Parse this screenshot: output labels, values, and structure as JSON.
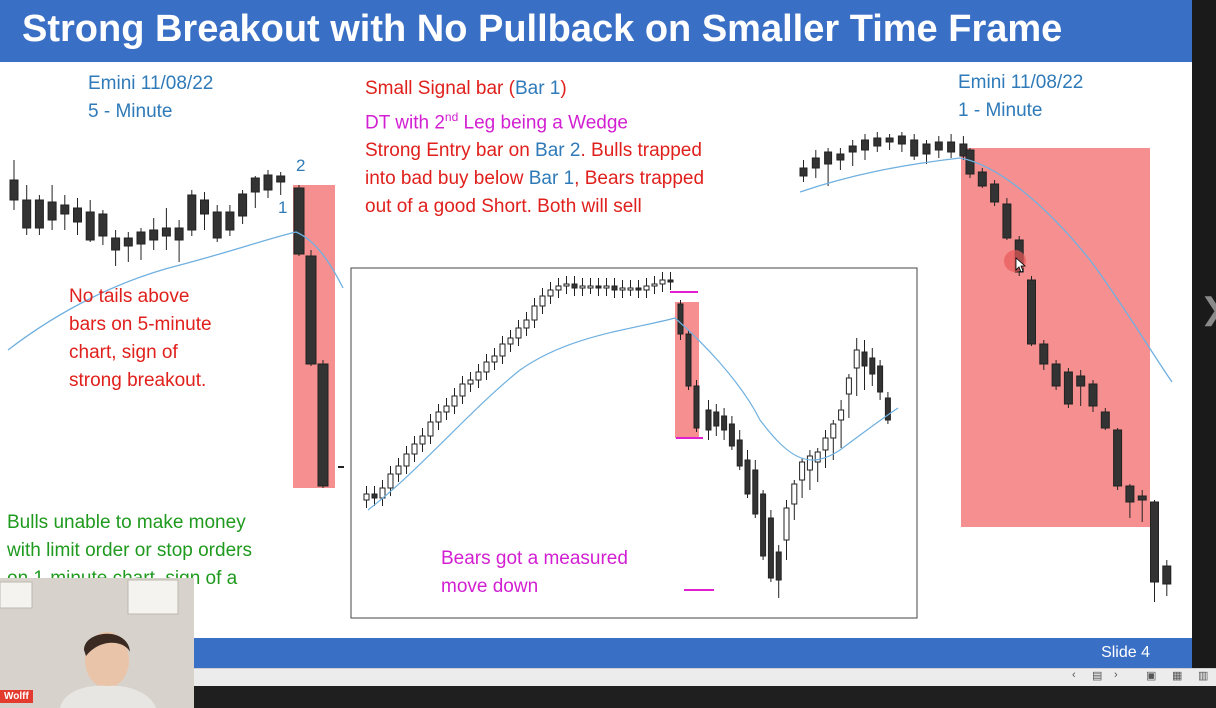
{
  "slide": {
    "title": "Strong Breakout with No Pullback on Smaller Time Frame",
    "left_chart_label": [
      "Emini 11/08/22",
      "5 - Minute"
    ],
    "right_chart_label": [
      "Emini 11/08/22",
      "1 - Minute"
    ],
    "bar_numbers": [
      "2",
      "1"
    ],
    "signal_text": {
      "line1_a": "Small Signal bar (",
      "line1_b": "Bar 1",
      "line1_c": ")",
      "line2_a": "DT with 2",
      "line2_sup": "nd",
      "line2_b": " Leg being a Wedge",
      "line3_a": "Strong Entry bar on ",
      "line3_b": "Bar 2",
      "line3_c": ". Bulls trapped",
      "line4_a": "into bad buy below ",
      "line4_b": "Bar 1",
      "line4_c": ", Bears trapped",
      "line5": "out of a good Short. Both will sell"
    },
    "no_tails_text": [
      "No tails above",
      "bars on 5-minute",
      "chart, sign of",
      "strong breakout."
    ],
    "bulls_text": [
      "Bulls unable to make money",
      "with limit order or stop orders",
      "on 1-minute chart, sign of a"
    ],
    "measured_move_text": [
      "Bears got a measured",
      "move down"
    ],
    "slide_number": "Slide  4"
  },
  "colors": {
    "title_bg": "#3a6fc6",
    "blue_text": "#2f7ab8",
    "red_text": "#e0201c",
    "magenta_text": "#d21fd2",
    "green_text": "#1f9a1f",
    "highlight": "#f47c7c"
  },
  "webcam": {
    "name_tag": "Wolff"
  },
  "toolbar": {
    "icons": [
      "prev-icon",
      "notes-icon",
      "next-icon",
      "normal-view-icon",
      "slide-sorter-icon",
      "reading-view-icon"
    ]
  }
}
